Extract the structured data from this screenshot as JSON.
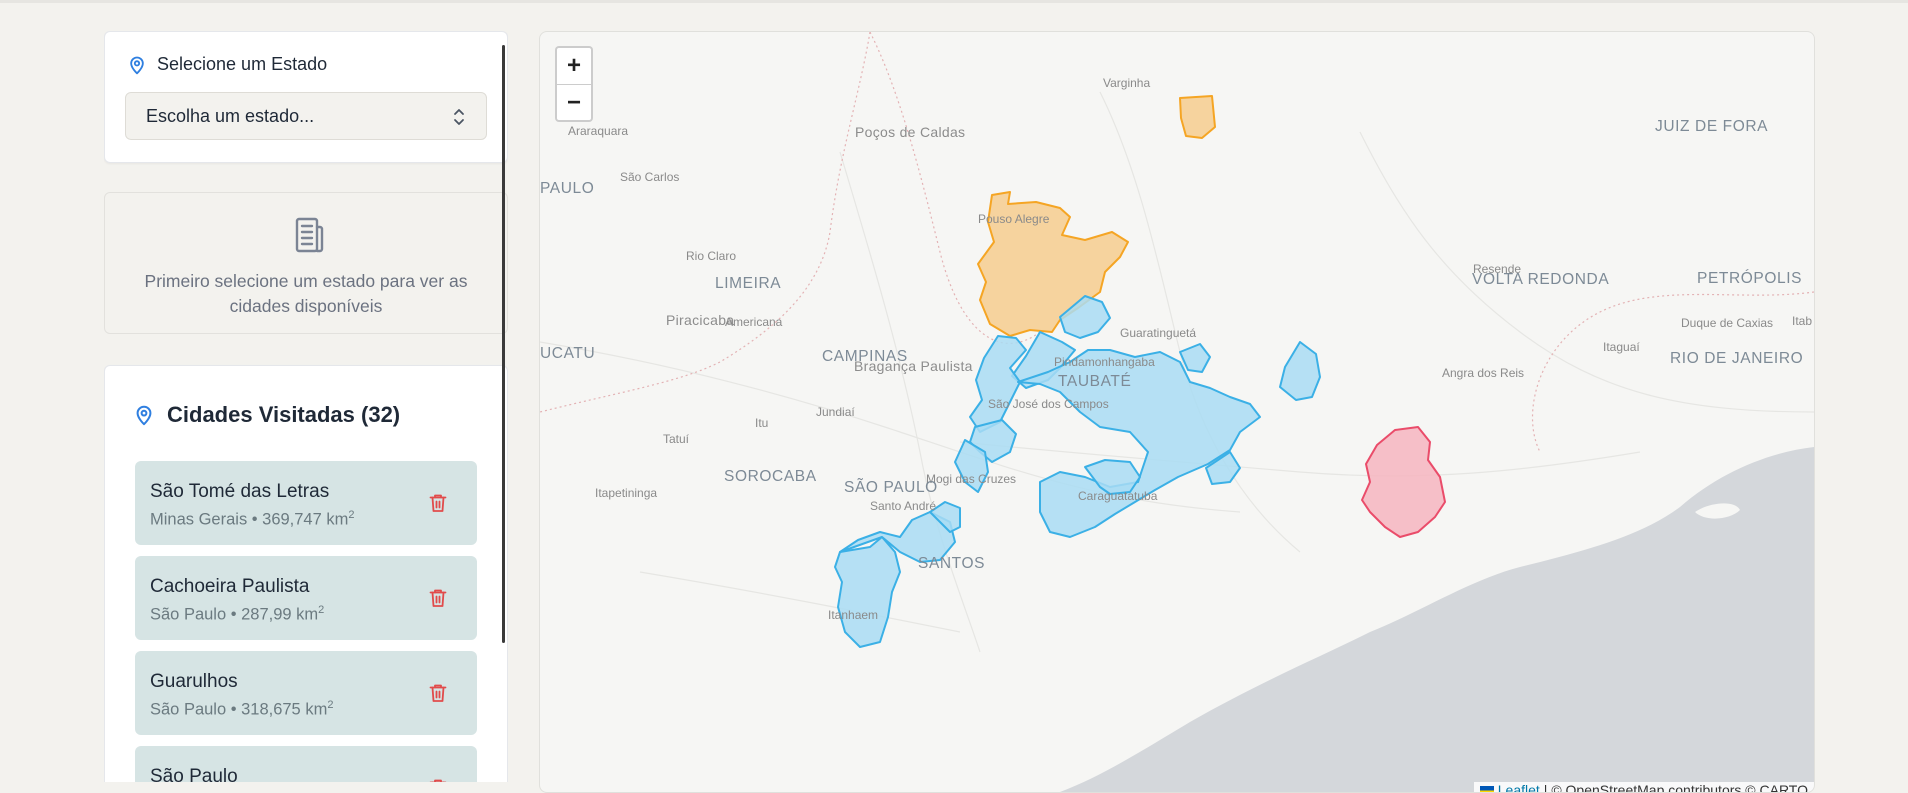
{
  "state_selector": {
    "label": "Selecione um Estado",
    "placeholder": "Escolha um estado..."
  },
  "info_panel": {
    "message": "Primeiro selecione um estado para ver as cidades disponíveis"
  },
  "visited": {
    "title": "Cidades Visitadas (32)",
    "cities": [
      {
        "name": "São Tomé das Letras",
        "meta": "Minas Gerais • 369,747 km",
        "sup": "2"
      },
      {
        "name": "Cachoeira Paulista",
        "meta": "São Paulo • 287,99 km",
        "sup": "2"
      },
      {
        "name": "Guarulhos",
        "meta": "São Paulo • 318,675 km",
        "sup": "2"
      },
      {
        "name": "São Paulo",
        "meta": "",
        "sup": ""
      }
    ]
  },
  "map": {
    "zoom_in": "+",
    "zoom_out": "−",
    "attribution_link": "Leaflet",
    "attribution_text": "| © OpenStreetMap contributors © CARTO",
    "labels": [
      {
        "key": "varginha",
        "text": "Varginha"
      },
      {
        "key": "araraquara",
        "text": "Araraquara"
      },
      {
        "key": "pocos",
        "text": "Poços de Caldas"
      },
      {
        "key": "juizdefora",
        "text": "JUIZ DE FORA"
      },
      {
        "key": "saocarlos",
        "text": "São Carlos"
      },
      {
        "key": "paulo",
        "text": "PAULO"
      },
      {
        "key": "pousoalegre",
        "text": "Pouso Alegre"
      },
      {
        "key": "rioclaro",
        "text": "Rio Claro"
      },
      {
        "key": "resende",
        "text": "Resende"
      },
      {
        "key": "voltaredonda",
        "text": "VOLTA REDONDA"
      },
      {
        "key": "petropolis",
        "text": "PETRÓPOLIS"
      },
      {
        "key": "limeira",
        "text": "LIMEIRA"
      },
      {
        "key": "piracicaba",
        "text": "Piracicaba"
      },
      {
        "key": "americana",
        "text": "Americana"
      },
      {
        "key": "guaratingueta",
        "text": "Guaratinguetá"
      },
      {
        "key": "duquedecaxias",
        "text": "Duque de Caxias"
      },
      {
        "key": "itab",
        "text": "Itab"
      },
      {
        "key": "itaguai",
        "text": "Itaguaí"
      },
      {
        "key": "ucatu",
        "text": "UCATU"
      },
      {
        "key": "campinas",
        "text": "CAMPINAS"
      },
      {
        "key": "braganca",
        "text": "Bragança Paulista"
      },
      {
        "key": "pindamonhangaba",
        "text": "Pindamonhangaba"
      },
      {
        "key": "riodejaneiro",
        "text": "RIO DE JANEIRO"
      },
      {
        "key": "taubate",
        "text": "TAUBATÉ"
      },
      {
        "key": "angradosreis",
        "text": "Angra dos Reis"
      },
      {
        "key": "jundiai",
        "text": "Jundiaí"
      },
      {
        "key": "saojosedoscampos",
        "text": "São José dos Campos"
      },
      {
        "key": "itu",
        "text": "Itu"
      },
      {
        "key": "tatui",
        "text": "Tatuí"
      },
      {
        "key": "sorocaba",
        "text": "SOROCABA"
      },
      {
        "key": "mogidascruzes",
        "text": "Mogi das Cruzes"
      },
      {
        "key": "saopaulo",
        "text": "SÃO PAULO"
      },
      {
        "key": "itapetininga",
        "text": "Itapetininga"
      },
      {
        "key": "caraguatatuba",
        "text": "Caraguatatuba"
      },
      {
        "key": "santoandre",
        "text": "Santo André"
      },
      {
        "key": "santos",
        "text": "SANTOS"
      },
      {
        "key": "itanhaem",
        "text": "Itanhaem"
      }
    ]
  },
  "colors": {
    "minas_gerais_fill": "#f6cd8e",
    "minas_gerais_stroke": "#f5a524",
    "sao_paulo_fill": "#a9dcf3",
    "sao_paulo_stroke": "#3bb0e6",
    "rio_de_janeiro_fill": "#f6b5c0",
    "rio_de_janeiro_stroke": "#ea4c6a",
    "accent": "#2f7fe0",
    "trash": "#e14b4b"
  }
}
